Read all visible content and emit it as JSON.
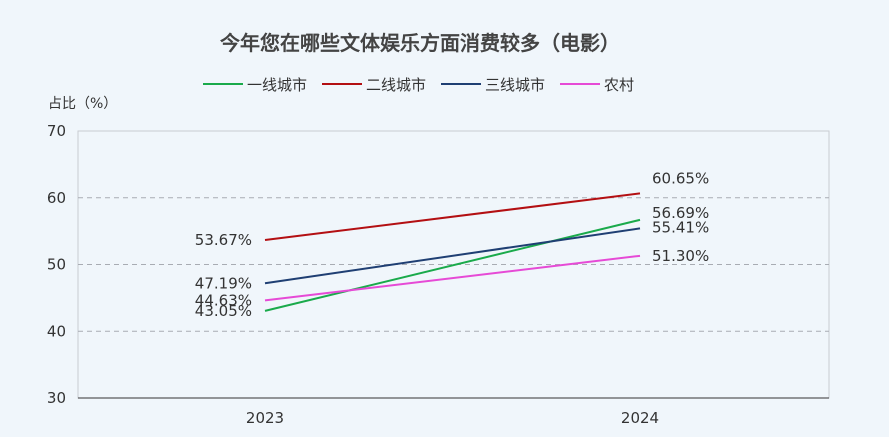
{
  "chart_data": {
    "type": "line",
    "title": "今年您在哪些文体娱乐方面消费较多（电影）",
    "ylabel": "占比（%）",
    "xlabel": "",
    "categories": [
      "2023",
      "2024"
    ],
    "ylim": [
      30,
      70
    ],
    "yticks": [
      30,
      40,
      50,
      60,
      70
    ],
    "grid": true,
    "legend_position": "top-center",
    "series": [
      {
        "name": "一线城市",
        "color": "#1aaa4b",
        "values": [
          43.05,
          56.69
        ],
        "labels": [
          "43.05%",
          "56.69%"
        ]
      },
      {
        "name": "二线城市",
        "color": "#b30f12",
        "values": [
          53.67,
          60.65
        ],
        "labels": [
          "53.67%",
          "60.65%"
        ]
      },
      {
        "name": "三线城市",
        "color": "#1f3f73",
        "values": [
          47.19,
          55.41
        ],
        "labels": [
          "47.19%",
          "55.41%"
        ]
      },
      {
        "name": "农村",
        "color": "#e64ad6",
        "values": [
          44.63,
          51.3
        ],
        "labels": [
          "44.63%",
          "51.30%"
        ]
      }
    ]
  }
}
